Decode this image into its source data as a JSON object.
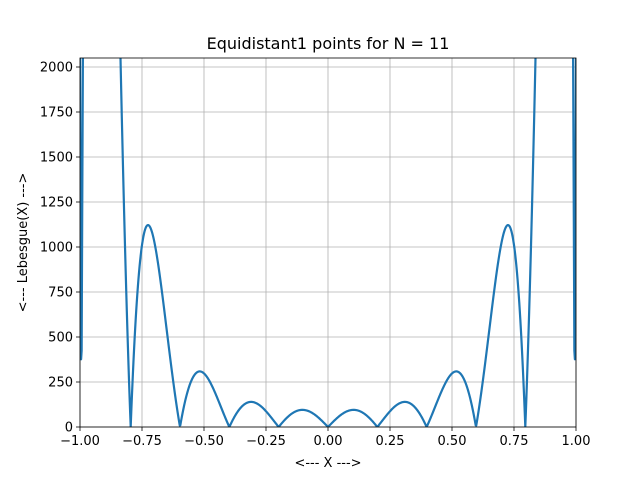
{
  "chart_data": {
    "type": "line",
    "title": "Equidistant1 points for N = 11",
    "xlabel": "<--- X --->",
    "ylabel": "<--- Lebesgue(X) --->",
    "xlim": [
      -1.0,
      1.0
    ],
    "ylim": [
      0,
      2050
    ],
    "xticks": [
      -1.0,
      -0.75,
      -0.5,
      -0.25,
      0.0,
      0.25,
      0.5,
      0.75,
      1.0
    ],
    "xtick_labels": [
      "−1.00",
      "−0.75",
      "−0.50",
      "−0.25",
      "0.00",
      "0.25",
      "0.50",
      "0.75",
      "1.00"
    ],
    "yticks": [
      0,
      250,
      500,
      750,
      1000,
      1250,
      1500,
      1750,
      2000
    ],
    "ytick_labels": [
      "0",
      "250",
      "500",
      "750",
      "1000",
      "1250",
      "1500",
      "1750",
      "2000"
    ],
    "grid": true,
    "series": [
      {
        "color": "#1f77b4",
        "n_nodes": 11
      }
    ]
  }
}
